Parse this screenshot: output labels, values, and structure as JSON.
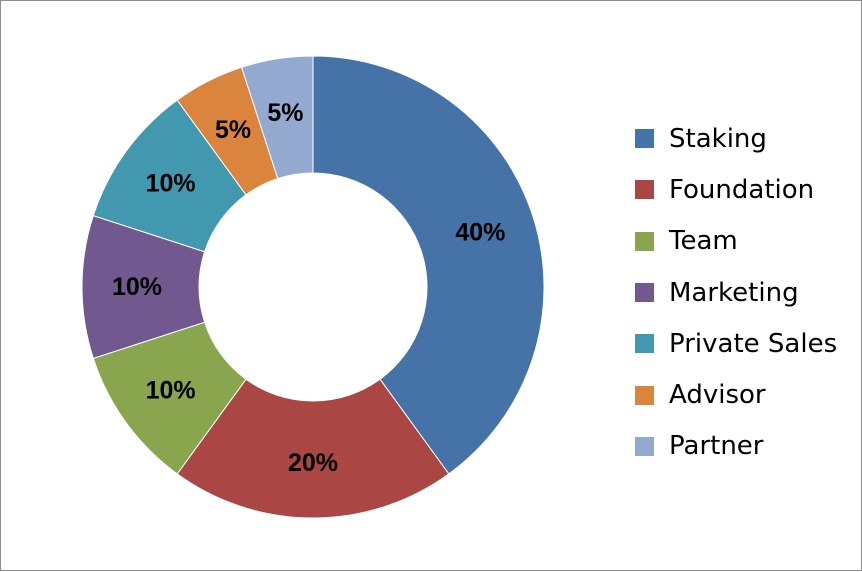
{
  "chart_data": {
    "type": "pie",
    "donut": true,
    "title": "",
    "slices": [
      {
        "label": "Staking",
        "value": 40,
        "display": "40%",
        "color": "#4572a7"
      },
      {
        "label": "Foundation",
        "value": 20,
        "display": "20%",
        "color": "#aa4643"
      },
      {
        "label": "Team",
        "value": 10,
        "display": "10%",
        "color": "#89a54e"
      },
      {
        "label": "Marketing",
        "value": 10,
        "display": "10%",
        "color": "#71588f"
      },
      {
        "label": "Private Sales",
        "value": 10,
        "display": "10%",
        "color": "#4198af"
      },
      {
        "label": "Advisor",
        "value": 5,
        "display": "5%",
        "color": "#db843d"
      },
      {
        "label": "Partner",
        "value": 5,
        "display": "5%",
        "color": "#93a9cf"
      }
    ],
    "legend_position": "right"
  }
}
